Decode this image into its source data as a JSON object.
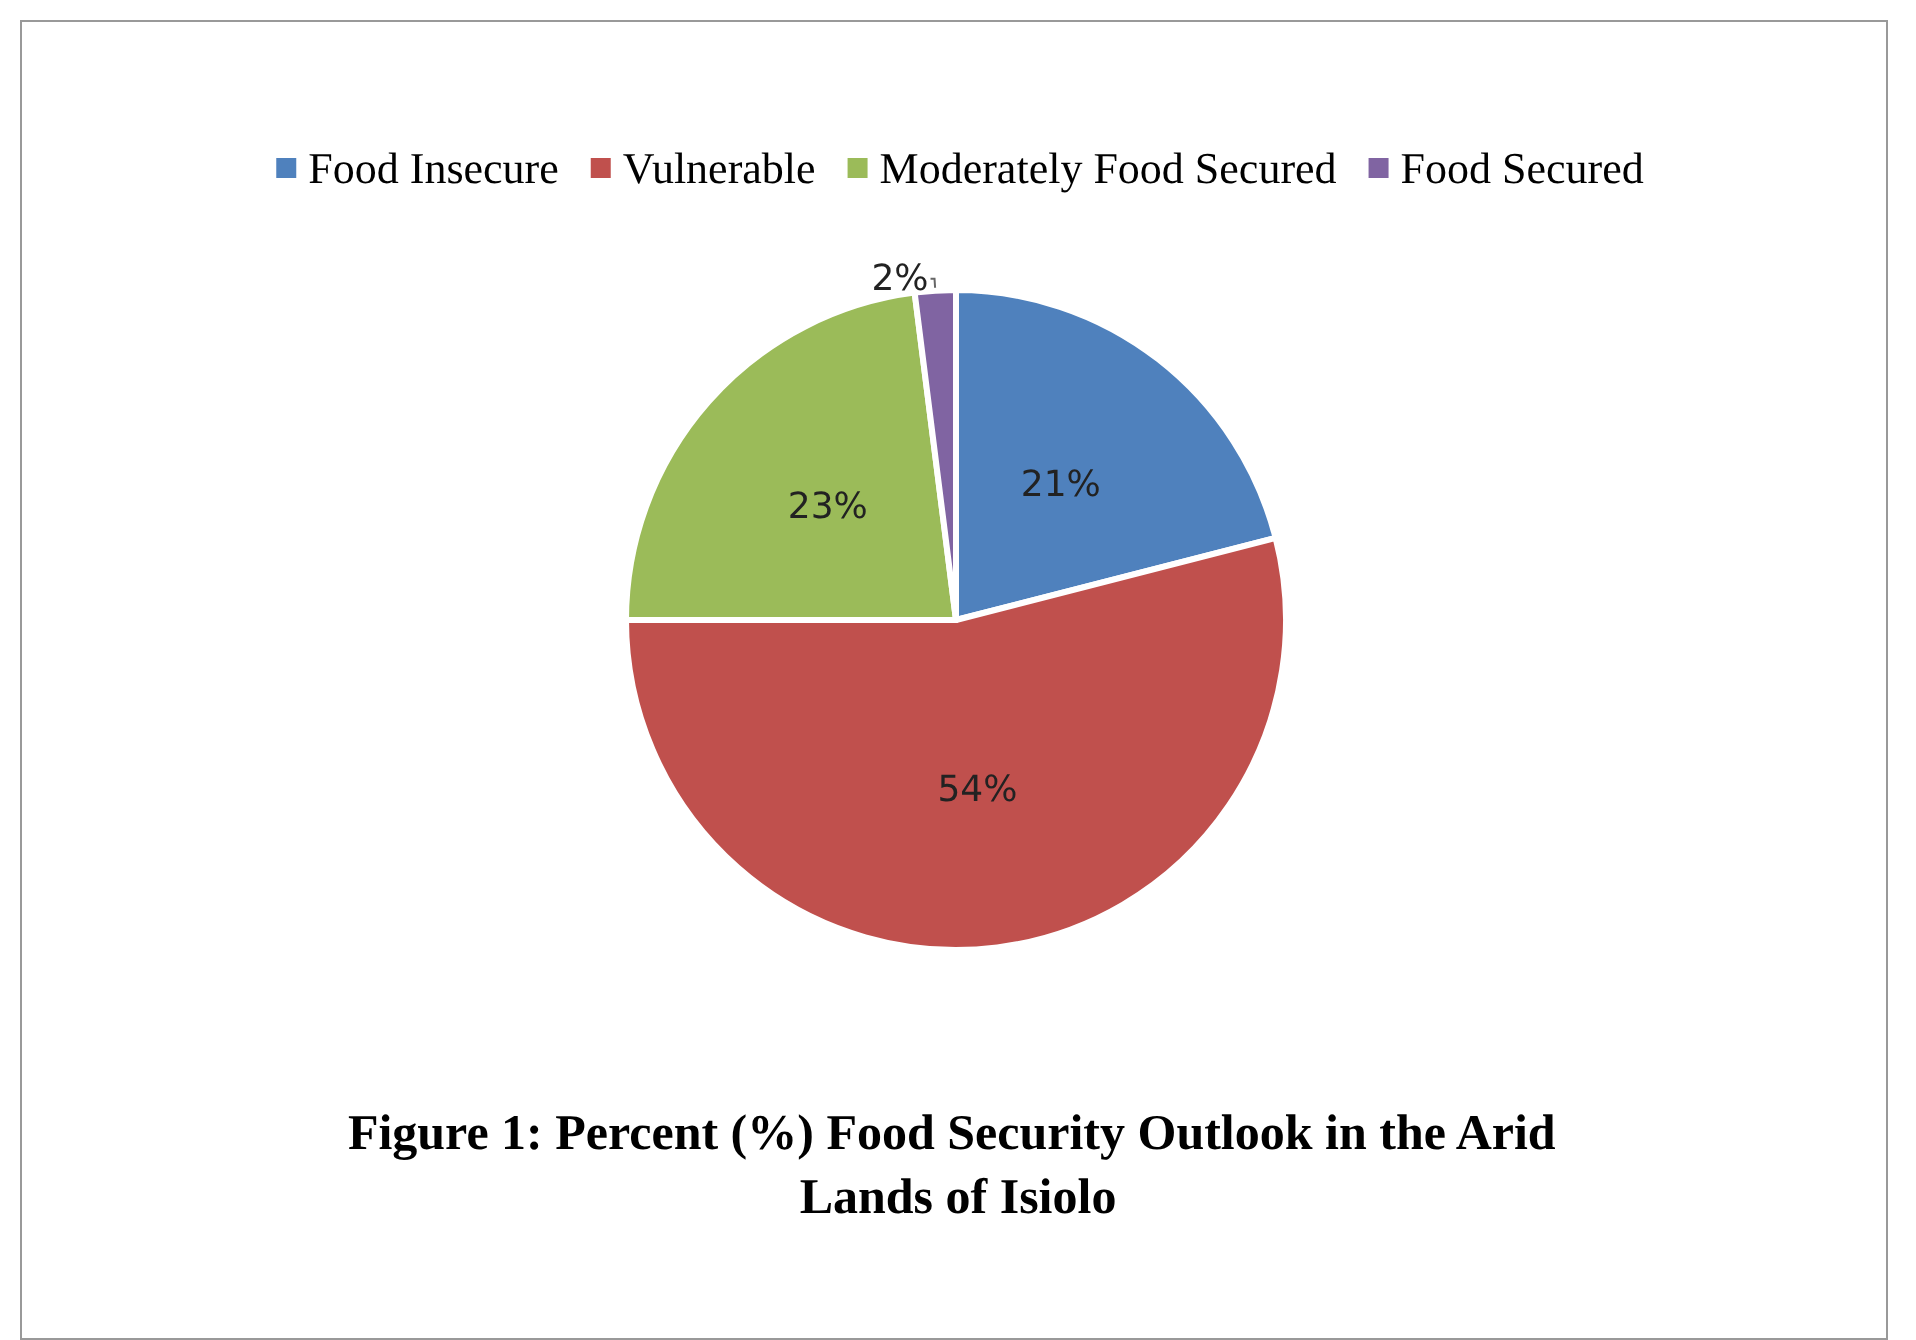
{
  "chart_data": {
    "type": "pie",
    "title": "Figure 1: Percent (%) Food Security Outlook in the Arid Lands of Isiolo",
    "categories": [
      "Food Insecure",
      "Vulnerable",
      "Moderately Food Secured",
      "Food Secured"
    ],
    "values": [
      21,
      54,
      23,
      2
    ],
    "colors": [
      "#4f81bd",
      "#c0504d",
      "#9bbb59",
      "#8064a2"
    ],
    "value_labels": [
      "21%",
      "54%",
      "23%",
      "2%"
    ],
    "legend": "top"
  }
}
